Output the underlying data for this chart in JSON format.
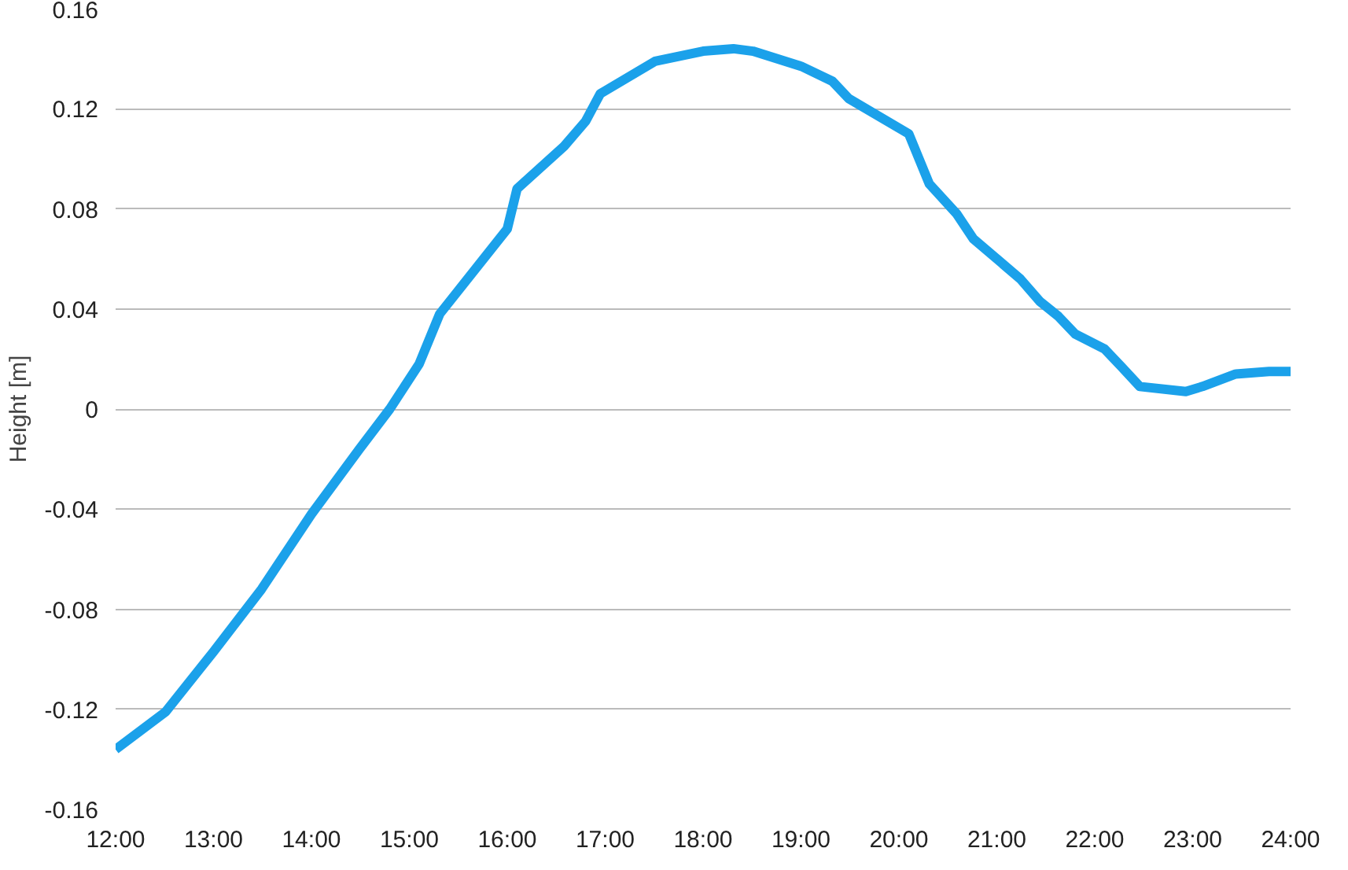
{
  "chart_data": {
    "type": "line",
    "ylabel": "Height [m]",
    "x": [
      12.0,
      12.51,
      13.0,
      13.49,
      14.0,
      14.49,
      14.8,
      15.1,
      15.31,
      16.0,
      16.1,
      16.58,
      16.8,
      16.95,
      17.51,
      18.0,
      18.31,
      18.51,
      19.0,
      19.32,
      19.49,
      20.1,
      20.31,
      20.59,
      20.76,
      21.24,
      21.44,
      21.63,
      21.8,
      22.1,
      22.27,
      22.46,
      22.93,
      23.1,
      23.44,
      23.78,
      24.0
    ],
    "series": [
      {
        "color": "#1ba1ea",
        "values": [
          -0.136,
          -0.121,
          -0.097,
          -0.072,
          -0.042,
          -0.016,
          0.0,
          0.018,
          0.038,
          0.072,
          0.088,
          0.105,
          0.115,
          0.126,
          0.139,
          0.143,
          0.144,
          0.143,
          0.137,
          0.131,
          0.124,
          0.11,
          0.09,
          0.078,
          0.068,
          0.052,
          0.043,
          0.037,
          0.03,
          0.024,
          0.017,
          0.009,
          0.007,
          0.009,
          0.014,
          0.015,
          0.015
        ]
      }
    ],
    "xlim": [
      12,
      24
    ],
    "xticks": [
      {
        "value": 12,
        "label": "12:00"
      },
      {
        "value": 13,
        "label": "13:00"
      },
      {
        "value": 14,
        "label": "14:00"
      },
      {
        "value": 15,
        "label": "15:00"
      },
      {
        "value": 16,
        "label": "16:00"
      },
      {
        "value": 17,
        "label": "17:00"
      },
      {
        "value": 18,
        "label": "18:00"
      },
      {
        "value": 19,
        "label": "19:00"
      },
      {
        "value": 20,
        "label": "20:00"
      },
      {
        "value": 21,
        "label": "21:00"
      },
      {
        "value": 22,
        "label": "22:00"
      },
      {
        "value": 23,
        "label": "23:00"
      },
      {
        "value": 24,
        "label": "24:00"
      }
    ],
    "ylim": [
      -0.16,
      0.16
    ],
    "yticks": [
      -0.16,
      -0.12,
      -0.08,
      -0.04,
      0,
      0.04,
      0.08,
      0.12,
      0.16
    ],
    "grid": "y",
    "marker": "none",
    "line_style": "solid"
  }
}
